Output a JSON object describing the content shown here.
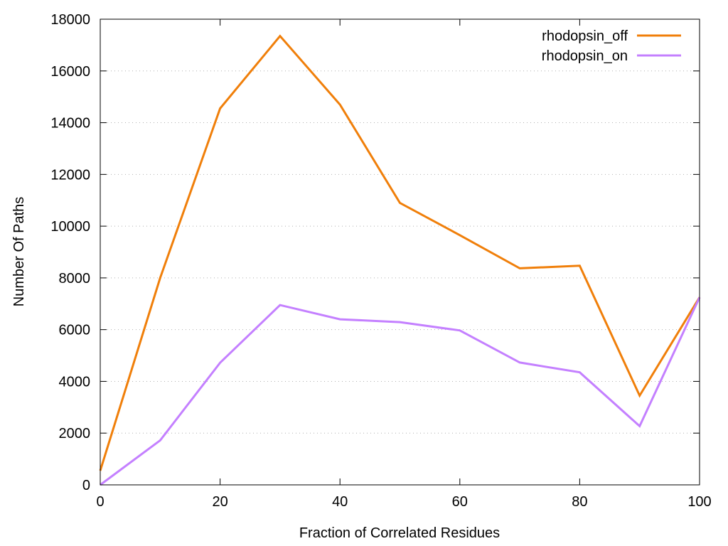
{
  "chart_data": {
    "type": "line",
    "xlabel": "Fraction of Correlated Residues",
    "ylabel": "Number Of Paths",
    "xlim": [
      0,
      100
    ],
    "ylim": [
      0,
      18000
    ],
    "xticks": [
      0,
      20,
      40,
      60,
      80,
      100
    ],
    "yticks": [
      0,
      2000,
      4000,
      6000,
      8000,
      10000,
      12000,
      14000,
      16000,
      18000
    ],
    "grid": "horizontal-dotted",
    "legend_position": "top-right",
    "x": [
      0,
      10,
      20,
      30,
      40,
      50,
      60,
      70,
      80,
      90,
      100
    ],
    "series": [
      {
        "name": "rhodopsin_off",
        "color": "#f07f0a",
        "values": [
          550,
          8000,
          14550,
          17350,
          14700,
          10900,
          9650,
          8370,
          8470,
          3450,
          7250
        ]
      },
      {
        "name": "rhodopsin_on",
        "color": "#c480ff",
        "values": [
          0,
          1720,
          4720,
          6950,
          6400,
          6290,
          5970,
          4730,
          4350,
          2270,
          7250
        ]
      }
    ]
  }
}
